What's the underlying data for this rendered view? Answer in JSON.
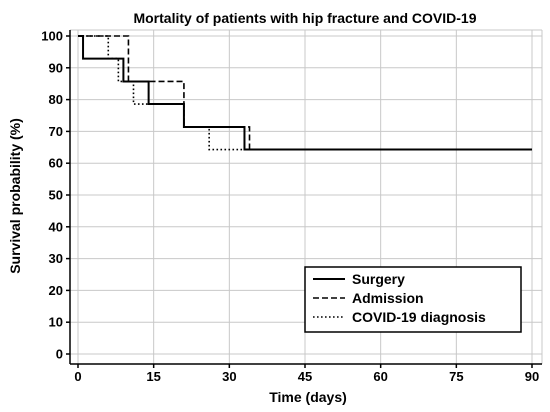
{
  "chart_data": {
    "type": "line",
    "step": true,
    "title": "Mortality of patients with hip fracture and COVID-19",
    "xlabel": "Time (days)",
    "ylabel": "Survival probability (%)",
    "xlim": [
      0,
      90
    ],
    "ylim": [
      0,
      100
    ],
    "xticks": [
      0,
      15,
      30,
      45,
      60,
      75,
      90
    ],
    "yticks": [
      0,
      10,
      20,
      30,
      40,
      50,
      60,
      70,
      80,
      90,
      100
    ],
    "grid": true,
    "legend_position": "bottom-right",
    "series": [
      {
        "name": "Surgery",
        "style": "solid",
        "points": [
          [
            0,
            100
          ],
          [
            1,
            100
          ],
          [
            1,
            92.9
          ],
          [
            9,
            92.9
          ],
          [
            9,
            85.7
          ],
          [
            14,
            85.7
          ],
          [
            14,
            78.6
          ],
          [
            21,
            78.6
          ],
          [
            21,
            71.4
          ],
          [
            33,
            71.4
          ],
          [
            33,
            64.3
          ],
          [
            90,
            64.3
          ]
        ]
      },
      {
        "name": "Admission",
        "style": "dashed",
        "points": [
          [
            0,
            100
          ],
          [
            10,
            100
          ],
          [
            10,
            85.7
          ],
          [
            21,
            85.7
          ],
          [
            21,
            71.4
          ],
          [
            34,
            71.4
          ],
          [
            34,
            64.3
          ],
          [
            90,
            64.3
          ]
        ]
      },
      {
        "name": "COVID-19 diagnosis",
        "style": "dotted",
        "points": [
          [
            0,
            100
          ],
          [
            6,
            100
          ],
          [
            6,
            92.9
          ],
          [
            8,
            92.9
          ],
          [
            8,
            85.7
          ],
          [
            11,
            85.7
          ],
          [
            11,
            78.6
          ],
          [
            21,
            78.6
          ],
          [
            21,
            71.4
          ],
          [
            26,
            71.4
          ],
          [
            26,
            64.3
          ],
          [
            90,
            64.3
          ]
        ]
      }
    ]
  }
}
